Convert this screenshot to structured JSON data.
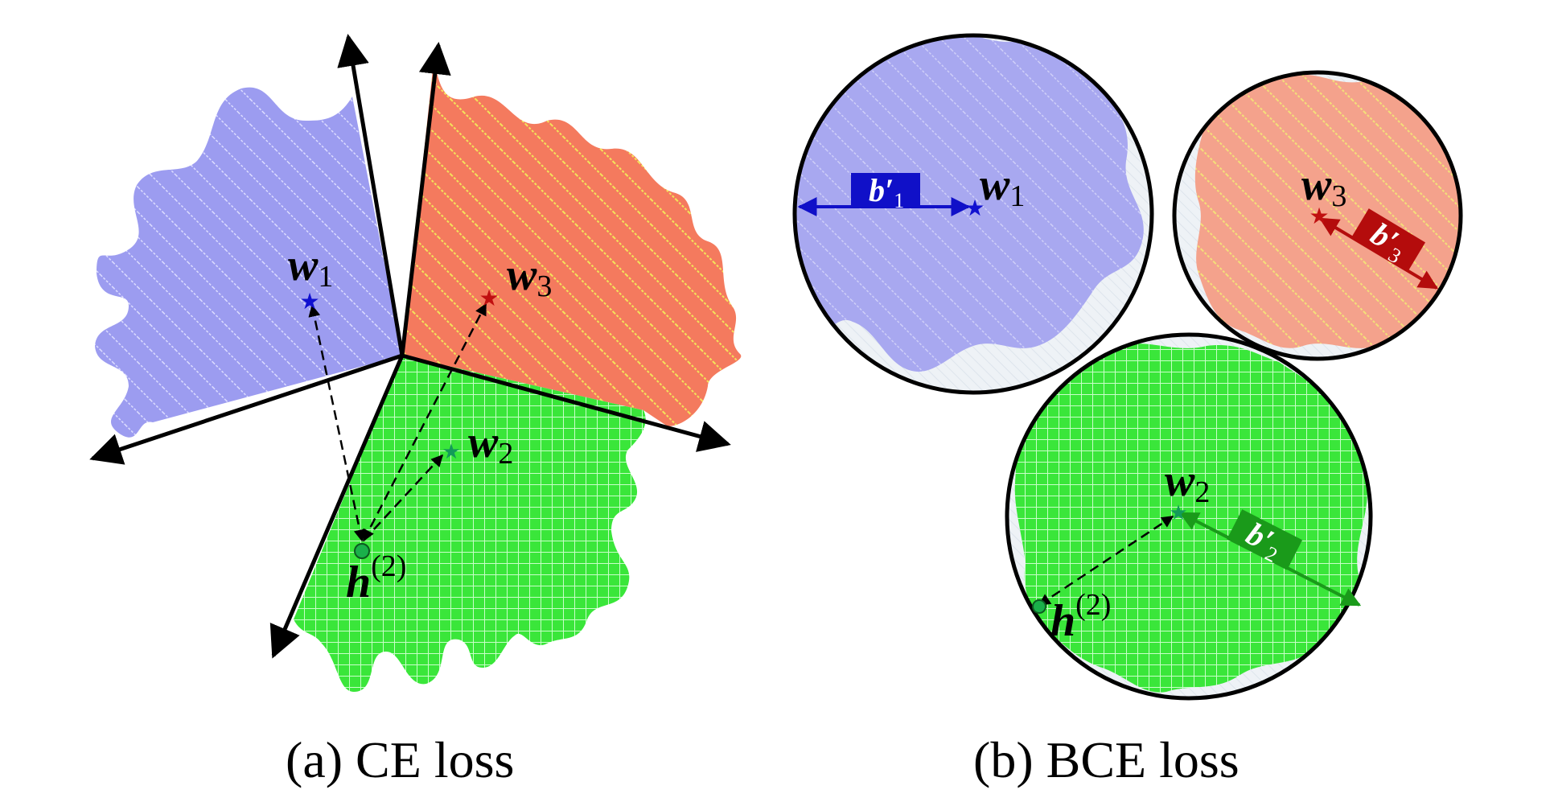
{
  "panel_a": {
    "caption": "(a) CE loss",
    "w1_base": "w",
    "w1_sub": "1",
    "w2_base": "w",
    "w2_sub": "2",
    "w3_base": "w",
    "w3_sub": "3",
    "h_base": "h",
    "h_sup": "(2)"
  },
  "panel_b": {
    "caption": "(b) BCE loss",
    "w1_base": "w",
    "w1_sub": "1",
    "w2_base": "w",
    "w2_sub": "2",
    "w3_base": "w",
    "w3_sub": "3",
    "h_base": "h",
    "h_sup": "(2)",
    "b1_base": "b′",
    "b1_sub": "1",
    "b2_base": "b′",
    "b2_sub": "2",
    "b3_base": "b′",
    "b3_sub": "3"
  },
  "colors": {
    "class1": "#9c9cf0",
    "class2": "#3ae63a",
    "class3": "#f47a5e",
    "class3_stripe": "#f3e45a",
    "star1": "#1010d0",
    "star2": "#139a5a",
    "star3": "#c01010",
    "bias1": "#1010c8",
    "bias2": "#1a9a1a",
    "bias3": "#b40c0c"
  }
}
